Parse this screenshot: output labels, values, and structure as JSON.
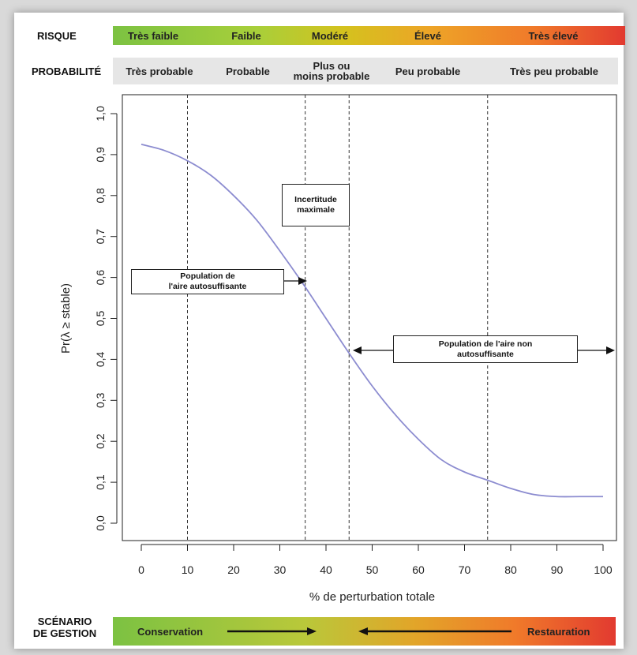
{
  "risk": {
    "label": "RISQUE",
    "levels": [
      "Très faible",
      "Faible",
      "Modéré",
      "Élevé",
      "Très élevé"
    ]
  },
  "probability": {
    "label": "PROBABILITÉ",
    "levels": [
      "Très probable",
      "Probable",
      "Plus ou\nmoins probable",
      "Peu probable",
      "Très peu probable"
    ]
  },
  "gestion": {
    "label": "SCÉNARIO\nDE GESTION",
    "left": "Conservation",
    "right": "Restauration"
  },
  "annotations": {
    "uncertainty": "Incertitude\nmaximale",
    "self_sustaining": "Population de\nl'aire autosuffisante",
    "not_self_sustaining": "Population de l'aire non\nautosuffisante"
  },
  "chart_data": {
    "type": "line",
    "xlabel": "% de perturbation totale",
    "ylabel": "Pr(λ ≥ stable)",
    "xlim": [
      0,
      100
    ],
    "ylim": [
      0,
      1
    ],
    "xticks": [
      0,
      10,
      20,
      30,
      40,
      50,
      60,
      70,
      80,
      90,
      100
    ],
    "yticks": [
      "0,0",
      "0,1",
      "0,2",
      "0,3",
      "0,4",
      "0,5",
      "0,6",
      "0,7",
      "0,8",
      "0,9",
      "1,0"
    ],
    "vlines": [
      10,
      35.5,
      45,
      75
    ],
    "series": [
      {
        "color": "#8c8cd0",
        "x": [
          0,
          5,
          10,
          15,
          20,
          25,
          30,
          35,
          40,
          45,
          50,
          55,
          60,
          65,
          70,
          75,
          80,
          85,
          90,
          95,
          100
        ],
        "y": [
          0.925,
          0.91,
          0.885,
          0.85,
          0.8,
          0.74,
          0.665,
          0.585,
          0.5,
          0.415,
          0.335,
          0.265,
          0.205,
          0.155,
          0.125,
          0.105,
          0.085,
          0.07,
          0.065,
          0.065,
          0.065
        ]
      }
    ]
  }
}
